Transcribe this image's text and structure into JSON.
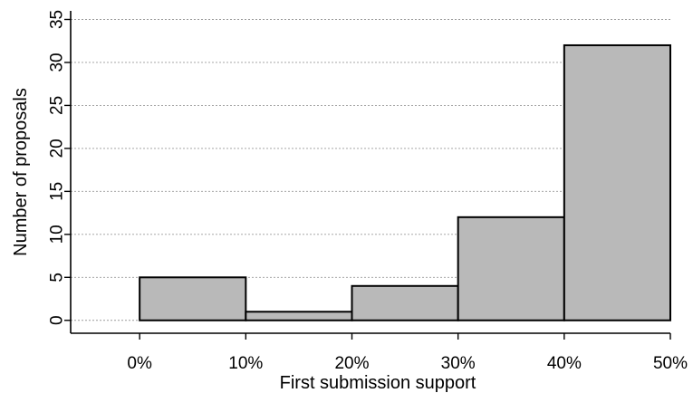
{
  "chart_data": {
    "type": "bar",
    "bins": [
      "0%-10%",
      "10%-20%",
      "20%-30%",
      "30%-40%",
      "40%-50%"
    ],
    "bin_edges": [
      0,
      10,
      20,
      30,
      40,
      50
    ],
    "values": [
      5,
      1,
      4,
      12,
      32
    ],
    "xlabel": "First submission support",
    "ylabel": "Number of proposals",
    "x_ticks": [
      "0%",
      "10%",
      "20%",
      "30%",
      "40%",
      "50%"
    ],
    "y_ticks": [
      "0",
      "5",
      "10",
      "15",
      "20",
      "25",
      "30",
      "35"
    ],
    "xlim": [
      -6.5,
      50
    ],
    "ylim": [
      -1.5,
      36
    ],
    "grid": true,
    "bar_color": "#b9b9b9"
  }
}
